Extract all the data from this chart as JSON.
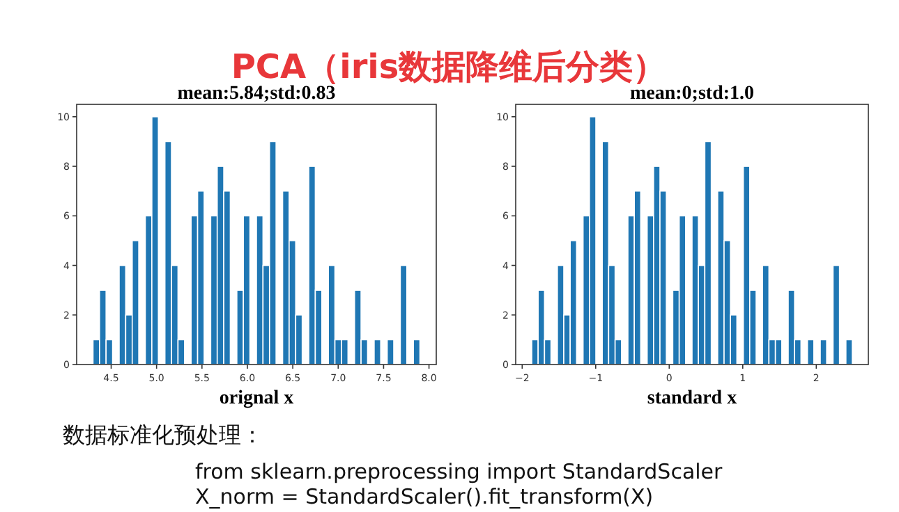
{
  "chart_data": [
    {
      "type": "histogram",
      "title": "mean:5.84;std:0.83",
      "xlabel": "orignal x",
      "color": "#1f77b4",
      "annotations": [
        "PCA（iris数据降维后分类）",
        "数据标准化预处理：",
        "from sklearn.preprocessing import StandardScaler",
        "X_norm = StandardScaler().fit_transform(X)"
      ],
      "bins": [
        4.3,
        4.372,
        4.444,
        4.516,
        4.588,
        4.66,
        4.732,
        4.804,
        4.876,
        4.948,
        5.02,
        5.092,
        5.164,
        5.236,
        5.308,
        5.38,
        5.452,
        5.524,
        5.596,
        5.668,
        5.74,
        5.812,
        5.884,
        5.956,
        6.028,
        6.1,
        6.172,
        6.244,
        6.316,
        6.388,
        6.46,
        6.532,
        6.604,
        6.676,
        6.748,
        6.82,
        6.892,
        6.964,
        7.036,
        7.108,
        7.18,
        7.252,
        7.324,
        7.396,
        7.468,
        7.54,
        7.612,
        7.684,
        7.756,
        7.828,
        7.9
      ],
      "values": [
        1,
        3,
        1,
        0,
        4,
        2,
        5,
        0,
        6,
        10,
        0,
        9,
        4,
        1,
        0,
        6,
        7,
        0,
        6,
        8,
        7,
        0,
        3,
        6,
        0,
        6,
        4,
        9,
        0,
        7,
        5,
        2,
        0,
        8,
        3,
        0,
        4,
        1,
        1,
        0,
        3,
        1,
        0,
        1,
        0,
        1,
        0,
        4,
        0,
        1
      ],
      "xlim": [
        4.12,
        8.08
      ],
      "xticks": [
        {
          "value": 4.5,
          "label": "4.5"
        },
        {
          "value": 5,
          "label": "5.0"
        },
        {
          "value": 5.5,
          "label": "5.5"
        },
        {
          "value": 6,
          "label": "6.0"
        },
        {
          "value": 6.5,
          "label": "6.5"
        },
        {
          "value": 7,
          "label": "7.0"
        },
        {
          "value": 7.5,
          "label": "7.5"
        },
        {
          "value": 8,
          "label": "8.0"
        }
      ],
      "ylim": [
        0,
        10.5
      ],
      "yticks": [
        0,
        2,
        4,
        6,
        8,
        10
      ]
    },
    {
      "type": "histogram",
      "title": "mean:0;std:1.0",
      "xlabel": "standard x",
      "color": "#1f77b4",
      "bins": [
        -1.87,
        -1.783,
        -1.696,
        -1.608,
        -1.521,
        -1.434,
        -1.347,
        -1.26,
        -1.172,
        -1.085,
        -0.998,
        -0.911,
        -0.824,
        -0.736,
        -0.649,
        -0.562,
        -0.475,
        -0.388,
        -0.3,
        -0.213,
        -0.126,
        -0.039,
        0.048,
        0.136,
        0.223,
        0.31,
        0.397,
        0.484,
        0.572,
        0.659,
        0.746,
        0.833,
        0.92,
        1.008,
        1.095,
        1.182,
        1.269,
        1.356,
        1.444,
        1.531,
        1.618,
        1.705,
        1.792,
        1.88,
        1.967,
        2.054,
        2.141,
        2.228,
        2.316,
        2.403,
        2.49
      ],
      "values": [
        1,
        3,
        1,
        0,
        4,
        2,
        5,
        0,
        6,
        10,
        0,
        9,
        4,
        1,
        0,
        6,
        7,
        0,
        6,
        8,
        7,
        0,
        3,
        6,
        0,
        6,
        4,
        9,
        0,
        7,
        5,
        2,
        0,
        8,
        3,
        0,
        4,
        1,
        1,
        0,
        3,
        1,
        0,
        1,
        0,
        1,
        0,
        4,
        0,
        1
      ],
      "xlim": [
        -2.088,
        2.708
      ],
      "xticks": [
        {
          "value": -2,
          "label": "−2"
        },
        {
          "value": -1,
          "label": "−1"
        },
        0,
        1,
        2
      ],
      "ylim": [
        0,
        10.5
      ],
      "yticks": [
        0,
        2,
        4,
        6,
        8,
        10
      ]
    }
  ]
}
